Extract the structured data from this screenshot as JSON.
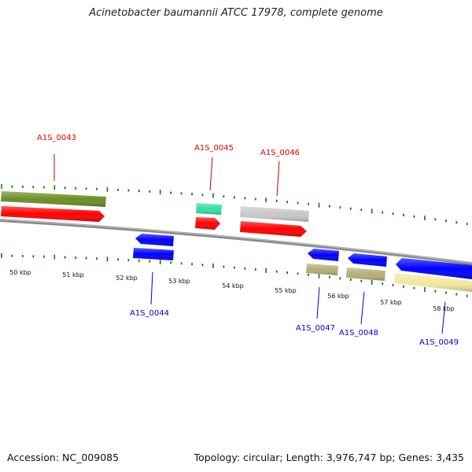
{
  "title": "Acinetobacter baumannii ATCC 17978, complete genome",
  "footer": {
    "accession": "Accession: NC_009085",
    "topology": "Topology: circular; Length: 3,976,747 bp; Genes: 3,435"
  },
  "scale": {
    "unit": "kbp",
    "tick_labels": [
      "50 kbp",
      "51 kbp",
      "52 kbp",
      "53 kbp",
      "54 kbp",
      "55 kbp",
      "56 kbp",
      "57 kbp",
      "58 kbp"
    ]
  },
  "genes": [
    {
      "label": "A1S_0043",
      "strand": "+",
      "color": "#dd0000"
    },
    {
      "label": "A1S_0044",
      "strand": "-",
      "color": "#0000cc"
    },
    {
      "label": "A1S_0045",
      "strand": "+",
      "color": "#dd0000"
    },
    {
      "label": "A1S_0046",
      "strand": "+",
      "color": "#dd0000"
    },
    {
      "label": "A1S_0047",
      "strand": "-",
      "color": "#0000cc"
    },
    {
      "label": "A1S_0048",
      "strand": "-",
      "color": "#0000cc"
    },
    {
      "label": "A1S_0049",
      "strand": "-",
      "color": "#0000cc"
    }
  ],
  "colors": {
    "forward_cds": "#ff0000",
    "reverse_cds": "#0000ff",
    "backbone": "#888888",
    "ticks": "#117711",
    "cog_olive": "#6b8e23",
    "cog_teal": "#33e0a0",
    "cog_gray": "#c8c8c8",
    "cog_khaki": "#b5ae78",
    "cog_yellow": "#f3e8a0"
  }
}
